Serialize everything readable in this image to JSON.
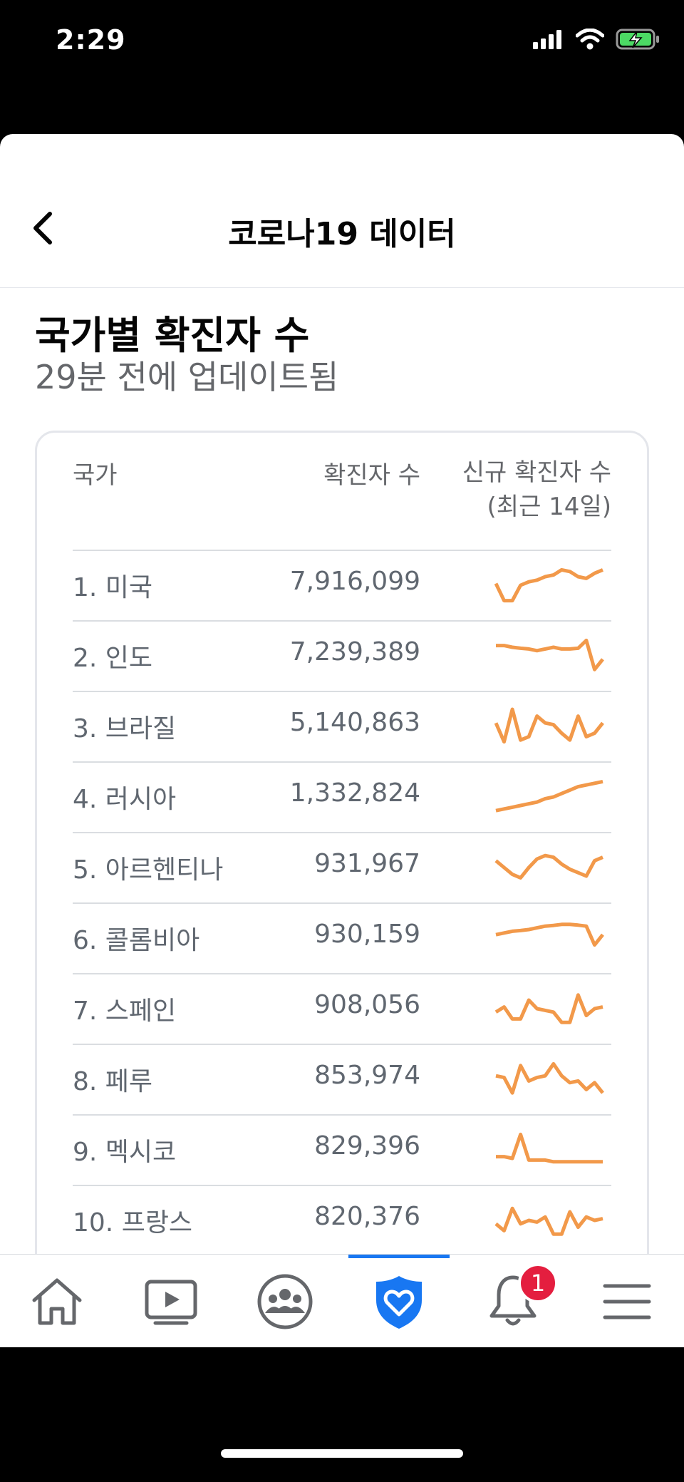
{
  "status": {
    "time": "2:29"
  },
  "header": {
    "title": "코로나19 데이터"
  },
  "section": {
    "title": "국가별 확진자 수",
    "subtitle": "29분 전에 업데이트됨"
  },
  "table": {
    "headers": {
      "country": "국가",
      "cases": "확진자 수",
      "new_line1": "신규 확진자 수",
      "new_line2": "(최근 14일)"
    },
    "spark_color": "#f2994a",
    "rows": [
      {
        "name": "1. 미국",
        "cases": "7,916,099",
        "trend": [
          0.55,
          0.05,
          0.05,
          0.5,
          0.6,
          0.65,
          0.75,
          0.8,
          0.95,
          0.9,
          0.75,
          0.7,
          0.85,
          0.95
        ]
      },
      {
        "name": "2. 인도",
        "cases": "7,239,389",
        "trend": [
          0.8,
          0.8,
          0.75,
          0.72,
          0.7,
          0.65,
          0.7,
          0.75,
          0.7,
          0.7,
          0.72,
          0.95,
          0.1,
          0.4
        ]
      },
      {
        "name": "3. 브라질",
        "cases": "5,140,863",
        "trend": [
          0.6,
          0.05,
          1.0,
          0.1,
          0.2,
          0.8,
          0.6,
          0.55,
          0.3,
          0.1,
          0.8,
          0.2,
          0.3,
          0.6
        ]
      },
      {
        "name": "4. 러시아",
        "cases": "1,332,824",
        "trend": [
          0.1,
          0.15,
          0.2,
          0.25,
          0.3,
          0.35,
          0.45,
          0.5,
          0.6,
          0.7,
          0.8,
          0.85,
          0.9,
          0.95
        ]
      },
      {
        "name": "5. 아르헨티나",
        "cases": "931,967",
        "trend": [
          0.7,
          0.5,
          0.3,
          0.2,
          0.5,
          0.75,
          0.85,
          0.8,
          0.6,
          0.45,
          0.35,
          0.25,
          0.7,
          0.8
        ]
      },
      {
        "name": "6. 콜롬비아",
        "cases": "930,159",
        "trend": [
          0.6,
          0.65,
          0.7,
          0.72,
          0.75,
          0.8,
          0.85,
          0.87,
          0.9,
          0.9,
          0.88,
          0.85,
          0.3,
          0.6
        ]
      },
      {
        "name": "7. 스페인",
        "cases": "908,056",
        "trend": [
          0.4,
          0.55,
          0.2,
          0.2,
          0.75,
          0.5,
          0.45,
          0.4,
          0.1,
          0.1,
          0.9,
          0.3,
          0.5,
          0.55
        ]
      },
      {
        "name": "8. 페루",
        "cases": "853,974",
        "trend": [
          0.6,
          0.55,
          0.1,
          0.9,
          0.45,
          0.55,
          0.6,
          0.95,
          0.6,
          0.4,
          0.45,
          0.2,
          0.4,
          0.1
        ]
      },
      {
        "name": "9. 멕시코",
        "cases": "829,396",
        "trend": [
          0.3,
          0.3,
          0.25,
          0.95,
          0.2,
          0.2,
          0.2,
          0.15,
          0.15,
          0.15,
          0.15,
          0.15,
          0.15,
          0.15
        ]
      },
      {
        "name": "10. 프랑스",
        "cases": "820,376",
        "trend": [
          0.4,
          0.2,
          0.85,
          0.4,
          0.5,
          0.45,
          0.6,
          0.1,
          0.1,
          0.75,
          0.3,
          0.6,
          0.5,
          0.55
        ]
      }
    ]
  },
  "tabbar": {
    "active_color": "#1877f2",
    "icon_color": "#65676b",
    "notification_count": "1",
    "tabs": [
      {
        "name": "home",
        "icon": "home-icon"
      },
      {
        "name": "watch",
        "icon": "video-play-icon"
      },
      {
        "name": "groups",
        "icon": "groups-icon"
      },
      {
        "name": "covid-info",
        "icon": "heart-shield-icon"
      },
      {
        "name": "notifications",
        "icon": "bell-icon"
      },
      {
        "name": "menu",
        "icon": "hamburger-menu-icon"
      }
    ]
  }
}
